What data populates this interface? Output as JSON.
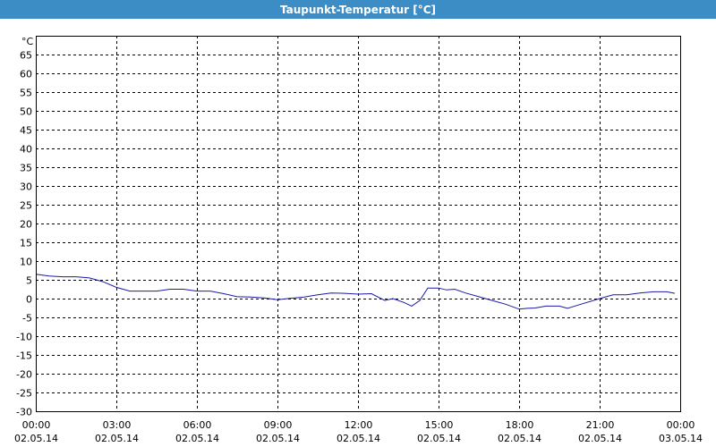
{
  "window": {
    "title": "Taupunkt-Temperatur [°C]"
  },
  "colors": {
    "title_bar": "#3c8dc5",
    "series": "#1a1aa6",
    "grid": "#000000"
  },
  "chart_data": {
    "type": "line",
    "title": "Taupunkt-Temperatur [°C]",
    "ylabel": "°C",
    "xlabel": "",
    "ylim": [
      -30,
      70
    ],
    "yticks": [
      65,
      60,
      55,
      50,
      45,
      40,
      35,
      30,
      25,
      20,
      15,
      10,
      5,
      0,
      -5,
      -10,
      -15,
      -20,
      -25,
      -30
    ],
    "xlim_hours": [
      0,
      24
    ],
    "xticks": [
      {
        "hour": 0,
        "time": "00:00",
        "date": "02.05.14"
      },
      {
        "hour": 3,
        "time": "03:00",
        "date": "02.05.14"
      },
      {
        "hour": 6,
        "time": "06:00",
        "date": "02.05.14"
      },
      {
        "hour": 9,
        "time": "09:00",
        "date": "02.05.14"
      },
      {
        "hour": 12,
        "time": "12:00",
        "date": "02.05.14"
      },
      {
        "hour": 15,
        "time": "15:00",
        "date": "02.05.14"
      },
      {
        "hour": 18,
        "time": "18:00",
        "date": "02.05.14"
      },
      {
        "hour": 21,
        "time": "21:00",
        "date": "02.05.14"
      },
      {
        "hour": 24,
        "time": "00:00",
        "date": "03.05.14"
      }
    ],
    "grid": true,
    "series": [
      {
        "x": [
          0,
          0.5,
          1,
          1.5,
          2,
          2.5,
          3,
          3.5,
          4,
          4.5,
          5,
          5.5,
          6,
          6.5,
          7,
          7.5,
          8,
          8.5,
          9,
          9.5,
          10,
          10.5,
          11,
          11.5,
          12,
          12.5,
          13,
          13.3,
          13.7,
          14,
          14.3,
          14.6,
          15,
          15.3,
          15.6,
          16,
          16.5,
          17,
          17.5,
          18,
          18.3,
          18.6,
          19,
          19.5,
          19.8,
          20.3,
          21,
          21.5,
          22,
          22.5,
          23,
          23.5,
          23.8
        ],
        "y": [
          6.5,
          6,
          5.8,
          5.8,
          5.5,
          4.5,
          3,
          2,
          2,
          2,
          2.5,
          2.5,
          2,
          2,
          1.3,
          0.5,
          0.4,
          0.2,
          -0.3,
          0.1,
          0.4,
          1,
          1.5,
          1.4,
          1.2,
          1.3,
          -0.5,
          0,
          -1,
          -2,
          -0.5,
          2.8,
          2.8,
          2.3,
          2.5,
          1.5,
          0.5,
          -0.5,
          -1.5,
          -2.8,
          -2.6,
          -2.5,
          -2,
          -2,
          -2.6,
          -1.5,
          0,
          1,
          1,
          1.5,
          1.8,
          1.8,
          1.4
        ]
      }
    ]
  }
}
